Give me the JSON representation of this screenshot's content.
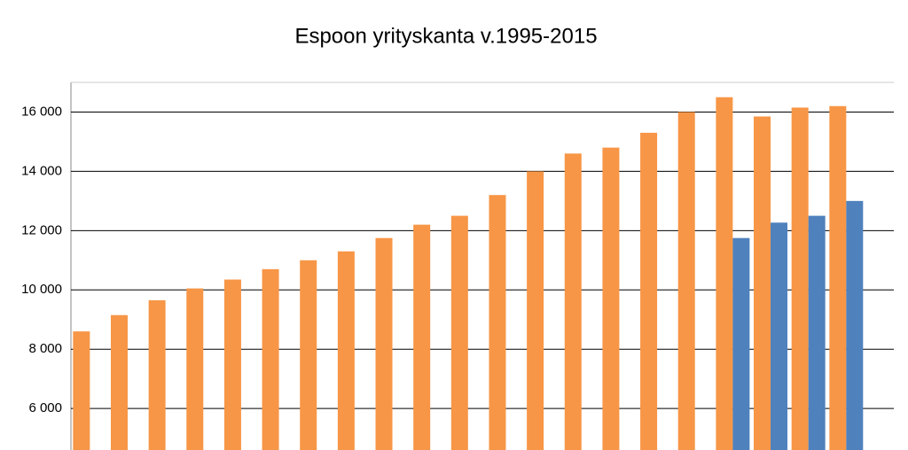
{
  "chart_data": {
    "type": "bar",
    "title": "Espoon yrityskanta v.1995-2015",
    "categories": [
      null,
      null,
      null,
      null,
      null,
      null,
      null,
      null,
      null,
      null,
      null,
      null,
      null,
      null,
      null,
      null,
      null,
      null,
      null,
      null,
      null
    ],
    "series": [
      {
        "color": "#f79646",
        "values": [
          8600,
          9150,
          9650,
          10050,
          10350,
          10700,
          11000,
          11300,
          11750,
          12200,
          12500,
          13200,
          14000,
          14600,
          14800,
          15300,
          16000,
          16500,
          15850,
          16150,
          16200
        ]
      },
      {
        "color": "#4f81bd",
        "values": [
          null,
          null,
          null,
          null,
          null,
          null,
          null,
          null,
          null,
          null,
          null,
          null,
          null,
          null,
          null,
          null,
          null,
          11750,
          12270,
          12500,
          13000
        ]
      }
    ],
    "ylim": [
      4600,
      17000
    ],
    "yticks": [
      {
        "value": 6000,
        "label": "6 000"
      },
      {
        "value": 8000,
        "label": "8 000"
      },
      {
        "value": 10000,
        "label": "10 000"
      },
      {
        "value": 12000,
        "label": "12 000"
      },
      {
        "value": 14000,
        "label": "14 000"
      },
      {
        "value": 16000,
        "label": "16 000"
      }
    ],
    "grid": true
  }
}
